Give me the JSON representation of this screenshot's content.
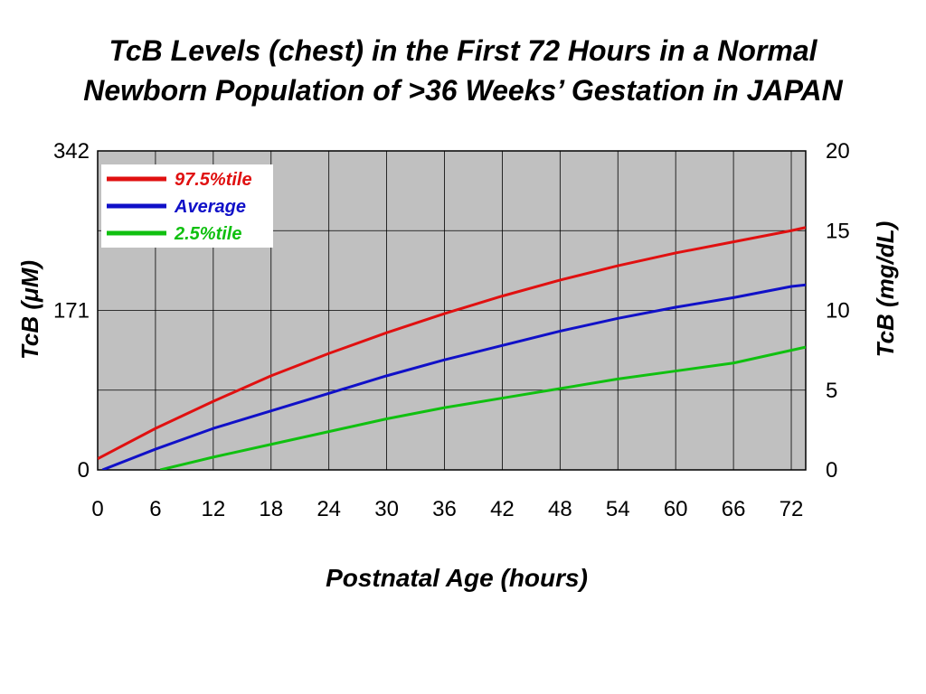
{
  "chart_data": {
    "type": "line",
    "title": [
      "TcB Levels (chest) in the First 72 Hours in a Normal",
      "Newborn Population of >36 Weeks’ Gestation in JAPAN"
    ],
    "xlabel": "Postnatal Age (hours)",
    "ylabel_left": "TcB (μM)",
    "ylabel_right": "TcB (mg/dL)",
    "xlim": [
      0,
      73.5
    ],
    "ylim_left": [
      0,
      342
    ],
    "ylim_right": [
      0,
      20
    ],
    "x_ticks": [
      0,
      6,
      12,
      18,
      24,
      30,
      36,
      42,
      48,
      54,
      60,
      66,
      72
    ],
    "y_ticks_left": [
      0,
      171,
      342
    ],
    "y_ticks_right": [
      0,
      5,
      10,
      15,
      20
    ],
    "grid": true,
    "legend_position": "top-left",
    "series": [
      {
        "name": "97.5%tile",
        "color": "#e01010",
        "x": [
          0,
          6,
          12,
          18,
          24,
          30,
          36,
          42,
          48,
          54,
          60,
          66,
          72,
          73.5
        ],
        "y": [
          0.7,
          2.6,
          4.3,
          5.9,
          7.3,
          8.6,
          9.8,
          10.9,
          11.9,
          12.8,
          13.6,
          14.3,
          15.0,
          15.2
        ]
      },
      {
        "name": "Average",
        "color": "#1010c8",
        "x": [
          0.5,
          6,
          12,
          18,
          24,
          30,
          36,
          42,
          48,
          54,
          60,
          66,
          72,
          73.5
        ],
        "y": [
          0,
          1.3,
          2.6,
          3.7,
          4.8,
          5.9,
          6.9,
          7.8,
          8.7,
          9.5,
          10.2,
          10.8,
          11.5,
          11.6
        ]
      },
      {
        "name": "2.5%tile",
        "color": "#10c010",
        "x": [
          6.5,
          12,
          18,
          24,
          30,
          36,
          42,
          48,
          54,
          60,
          66,
          72,
          73.5
        ],
        "y": [
          0,
          0.8,
          1.6,
          2.4,
          3.2,
          3.9,
          4.5,
          5.1,
          5.7,
          6.2,
          6.7,
          7.5,
          7.7
        ]
      }
    ]
  }
}
